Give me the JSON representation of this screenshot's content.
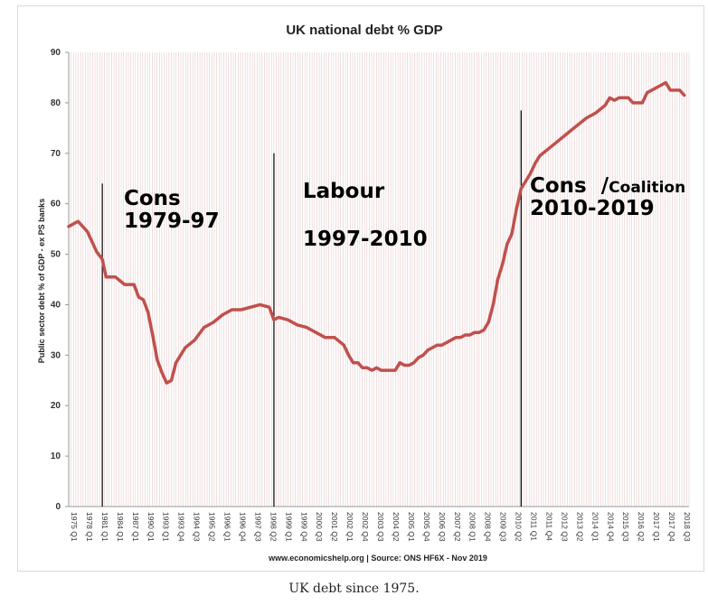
{
  "caption": "UK debt since 1975.",
  "chart_data": {
    "type": "line",
    "title": "UK national debt % GDP",
    "ylabel": "Public sector debt % of GDP - ex PS banks",
    "xlabel": "",
    "source": "www.economicshelp.org | Source: ONS HF6X - Nov 2019",
    "ylim": [
      0,
      90
    ],
    "yticks": [
      0,
      10,
      20,
      30,
      40,
      50,
      60,
      70,
      80,
      90
    ],
    "grid": "vertical",
    "xtick_labels": [
      "1975 Q1",
      "1978 Q1",
      "1981 Q1",
      "1984 Q1",
      "1987 Q1",
      "1990 Q1",
      "1993 Q1",
      "1993 Q4",
      "1994 Q3",
      "1995 Q2",
      "1996 Q1",
      "1996 Q4",
      "1997 Q3",
      "1998 Q2",
      "1999 Q1",
      "1999 Q4",
      "2000 Q3",
      "2001 Q2",
      "2002 Q1",
      "2002 Q4",
      "2003 Q3",
      "2004 Q2",
      "2005 Q1",
      "2005 Q4",
      "2006 Q3",
      "2007 Q2",
      "2008 Q1",
      "2008 Q4",
      "2009 Q3",
      "2010 Q2",
      "2011 Q1",
      "2011 Q4",
      "2012 Q3",
      "2013 Q2",
      "2014 Q1",
      "2014 Q4",
      "2015 Q3",
      "2016 Q2",
      "2017 Q1",
      "2017 Q4",
      "2018 Q3"
    ],
    "series": [
      {
        "color": "#c0504d",
        "points": [
          {
            "x": 1975.0,
            "y": 55.5
          },
          {
            "x": 1976.0,
            "y": 56.5
          },
          {
            "x": 1977.0,
            "y": 54.5
          },
          {
            "x": 1978.0,
            "y": 50.5
          },
          {
            "x": 1978.6,
            "y": 49
          },
          {
            "x": 1979.0,
            "y": 45.5
          },
          {
            "x": 1980.0,
            "y": 45.5
          },
          {
            "x": 1981.0,
            "y": 44
          },
          {
            "x": 1982.0,
            "y": 44
          },
          {
            "x": 1982.5,
            "y": 41.5
          },
          {
            "x": 1983.0,
            "y": 41
          },
          {
            "x": 1983.5,
            "y": 38.5
          },
          {
            "x": 1984.0,
            "y": 34
          },
          {
            "x": 1984.5,
            "y": 29
          },
          {
            "x": 1985.0,
            "y": 26.5
          },
          {
            "x": 1985.5,
            "y": 24.5
          },
          {
            "x": 1986.0,
            "y": 25
          },
          {
            "x": 1986.5,
            "y": 28.5
          },
          {
            "x": 1987.5,
            "y": 31.5
          },
          {
            "x": 1988.5,
            "y": 33
          },
          {
            "x": 1989.5,
            "y": 35.5
          },
          {
            "x": 1990.5,
            "y": 36.5
          },
          {
            "x": 1991.5,
            "y": 38
          },
          {
            "x": 1992.5,
            "y": 39
          },
          {
            "x": 1993.5,
            "y": 39
          },
          {
            "x": 1994.5,
            "y": 39.5
          },
          {
            "x": 1995.5,
            "y": 40
          },
          {
            "x": 1996.5,
            "y": 39.5
          },
          {
            "x": 1997.0,
            "y": 37
          },
          {
            "x": 1997.5,
            "y": 37.5
          },
          {
            "x": 1998.5,
            "y": 37
          },
          {
            "x": 1999.5,
            "y": 36
          },
          {
            "x": 2000.5,
            "y": 35.5
          },
          {
            "x": 2001.5,
            "y": 34.5
          },
          {
            "x": 2002.5,
            "y": 33.5
          },
          {
            "x": 2003.5,
            "y": 33.5
          },
          {
            "x": 2004.5,
            "y": 32
          },
          {
            "x": 2005.0,
            "y": 30
          },
          {
            "x": 2005.5,
            "y": 28.5
          },
          {
            "x": 2006.0,
            "y": 28.5
          },
          {
            "x": 2006.5,
            "y": 27.5
          },
          {
            "x": 2007.0,
            "y": 27.5
          },
          {
            "x": 2007.5,
            "y": 27
          },
          {
            "x": 2008.0,
            "y": 27.5
          },
          {
            "x": 2008.5,
            "y": 27
          },
          {
            "x": 2009.0,
            "y": 27
          },
          {
            "x": 2009.5,
            "y": 27
          },
          {
            "x": 2010.0,
            "y": 27
          },
          {
            "x": 2010.5,
            "y": 28.5
          },
          {
            "x": 2011.0,
            "y": 28
          },
          {
            "x": 2011.5,
            "y": 28
          },
          {
            "x": 2012.0,
            "y": 28.5
          },
          {
            "x": 2012.5,
            "y": 29.5
          },
          {
            "x": 2013.0,
            "y": 30
          },
          {
            "x": 2013.5,
            "y": 31
          },
          {
            "x": 2014.0,
            "y": 31.5
          },
          {
            "x": 2014.5,
            "y": 32
          },
          {
            "x": 2015.0,
            "y": 32
          },
          {
            "x": 2015.5,
            "y": 32.5
          },
          {
            "x": 2016.0,
            "y": 33
          },
          {
            "x": 2016.5,
            "y": 33.5
          },
          {
            "x": 2017.0,
            "y": 33.5
          },
          {
            "x": 2017.5,
            "y": 34
          },
          {
            "x": 2018.0,
            "y": 34
          },
          {
            "x": 2018.5,
            "y": 34.5
          },
          {
            "x": 2019.0,
            "y": 34.5
          },
          {
            "x": 2019.5,
            "y": 35
          },
          {
            "x": 2020.0,
            "y": 36.5
          },
          {
            "x": 2020.5,
            "y": 40
          },
          {
            "x": 2021.0,
            "y": 45
          },
          {
            "x": 2021.5,
            "y": 48
          },
          {
            "x": 2022.0,
            "y": 52
          },
          {
            "x": 2022.5,
            "y": 54
          },
          {
            "x": 2023.0,
            "y": 59
          },
          {
            "x": 2023.5,
            "y": 63
          },
          {
            "x": 2024.0,
            "y": 64.5
          },
          {
            "x": 2024.5,
            "y": 66
          },
          {
            "x": 2025.0,
            "y": 68
          },
          {
            "x": 2025.5,
            "y": 69.5
          },
          {
            "x": 2026.5,
            "y": 71
          },
          {
            "x": 2027.5,
            "y": 72.5
          },
          {
            "x": 2028.5,
            "y": 74
          },
          {
            "x": 2029.5,
            "y": 75.5
          },
          {
            "x": 2030.5,
            "y": 77
          },
          {
            "x": 2031.5,
            "y": 78
          },
          {
            "x": 2032.5,
            "y": 79.5
          },
          {
            "x": 2033.0,
            "y": 81
          },
          {
            "x": 2033.5,
            "y": 80.5
          },
          {
            "x": 2034.0,
            "y": 81
          },
          {
            "x": 2035.0,
            "y": 81
          },
          {
            "x": 2035.5,
            "y": 80
          },
          {
            "x": 2036.5,
            "y": 80
          },
          {
            "x": 2037.0,
            "y": 82
          },
          {
            "x": 2038.0,
            "y": 83
          },
          {
            "x": 2039.0,
            "y": 84
          },
          {
            "x": 2039.5,
            "y": 82.5
          },
          {
            "x": 2040.5,
            "y": 82.5
          },
          {
            "x": 2041.0,
            "y": 81.5
          }
        ]
      }
    ],
    "era_dividers": [
      {
        "x": 1978.6,
        "top": 64
      },
      {
        "x": 1997.0,
        "top": 70
      },
      {
        "x": 2023.5,
        "top": 78.5
      }
    ],
    "annotations": [
      {
        "lines": [
          "Cons",
          "1979-97"
        ]
      },
      {
        "lines": [
          "Labour",
          "",
          "1997-2010"
        ]
      },
      {
        "lines": [
          "Cons  /Coalition",
          "2010-2019"
        ]
      }
    ]
  }
}
